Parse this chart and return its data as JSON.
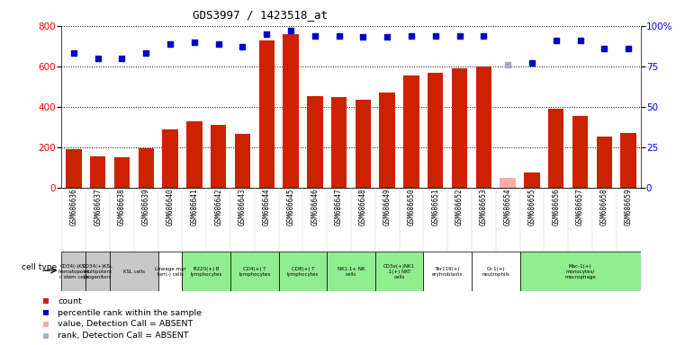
{
  "title": "GDS3997 / 1423518_at",
  "gsm_labels": [
    "GSM686636",
    "GSM686637",
    "GSM686638",
    "GSM686639",
    "GSM686640",
    "GSM686641",
    "GSM686642",
    "GSM686643",
    "GSM686644",
    "GSM686645",
    "GSM686646",
    "GSM686647",
    "GSM686648",
    "GSM686649",
    "GSM686650",
    "GSM686651",
    "GSM686652",
    "GSM686653",
    "GSM686654",
    "GSM686655",
    "GSM686656",
    "GSM686657",
    "GSM686658",
    "GSM686659"
  ],
  "bar_values": [
    190,
    155,
    150,
    195,
    290,
    330,
    310,
    265,
    730,
    760,
    455,
    450,
    435,
    470,
    555,
    570,
    590,
    600,
    50,
    75,
    390,
    355,
    255,
    270
  ],
  "bar_colors": [
    "#cc2200",
    "#cc2200",
    "#cc2200",
    "#cc2200",
    "#cc2200",
    "#cc2200",
    "#cc2200",
    "#cc2200",
    "#cc2200",
    "#cc2200",
    "#cc2200",
    "#cc2200",
    "#cc2200",
    "#cc2200",
    "#cc2200",
    "#cc2200",
    "#cc2200",
    "#cc2200",
    "#ffaaaa",
    "#cc2200",
    "#cc2200",
    "#cc2200",
    "#cc2200",
    "#cc2200"
  ],
  "percentile_values": [
    83,
    80,
    80,
    83,
    89,
    90,
    89,
    87,
    95,
    97,
    94,
    94,
    93,
    93,
    94,
    94,
    94,
    94,
    76,
    77,
    91,
    91,
    86,
    86
  ],
  "percentile_absent": [
    false,
    false,
    false,
    false,
    false,
    false,
    false,
    false,
    false,
    false,
    false,
    false,
    false,
    false,
    false,
    false,
    false,
    false,
    true,
    false,
    false,
    false,
    false,
    false
  ],
  "cell_types": [
    {
      "label": "CD34(-)KSL\nhematopoiet\nc stem cells",
      "start": 0,
      "end": 0,
      "color": "#c8c8c8"
    },
    {
      "label": "CD34(+)KSL\nmultipotent\nprogenitors",
      "start": 1,
      "end": 1,
      "color": "#c8c8c8"
    },
    {
      "label": "KSL cells",
      "start": 2,
      "end": 3,
      "color": "#c8c8c8"
    },
    {
      "label": "Lineage mar\nker(-) cells",
      "start": 4,
      "end": 4,
      "color": "#ffffff"
    },
    {
      "label": "B220(+) B\nlymphocytes",
      "start": 5,
      "end": 6,
      "color": "#90EE90"
    },
    {
      "label": "CD4(+) T\nlymphocytes",
      "start": 7,
      "end": 8,
      "color": "#90EE90"
    },
    {
      "label": "CD8(+) T\nlymphocytes",
      "start": 9,
      "end": 10,
      "color": "#90EE90"
    },
    {
      "label": "NK1.1+ NK\ncells",
      "start": 11,
      "end": 12,
      "color": "#90EE90"
    },
    {
      "label": "CD3e(+)NK1\n.1(+) NKT\ncells",
      "start": 13,
      "end": 14,
      "color": "#90EE90"
    },
    {
      "label": "Ter119(+)\neryhroblasts",
      "start": 15,
      "end": 16,
      "color": "#ffffff"
    },
    {
      "label": "Gr-1(+)\nneutrophils",
      "start": 17,
      "end": 18,
      "color": "#ffffff"
    },
    {
      "label": "Mac-1(+)\nmonocytes/\nmacrophage",
      "start": 19,
      "end": 23,
      "color": "#90EE90"
    }
  ],
  "ylim_left": [
    0,
    800
  ],
  "ylim_right": [
    0,
    100
  ],
  "yticks_left": [
    0,
    200,
    400,
    600,
    800
  ],
  "yticks_right": [
    0,
    25,
    50,
    75,
    100
  ],
  "yticklabels_right": [
    "0",
    "25",
    "50",
    "75",
    "100%"
  ],
  "bar_color_red": "#cc2200",
  "dot_color_blue": "#0000cc",
  "dot_color_absent": "#aaaacc",
  "bar_absent_color": "#ffaaaa",
  "legend_items": [
    {
      "color": "#cc2200",
      "label": "count"
    },
    {
      "color": "#0000cc",
      "label": "percentile rank within the sample"
    },
    {
      "color": "#ffaaaa",
      "label": "value, Detection Call = ABSENT"
    },
    {
      "color": "#aaaacc",
      "label": "rank, Detection Call = ABSENT"
    }
  ]
}
